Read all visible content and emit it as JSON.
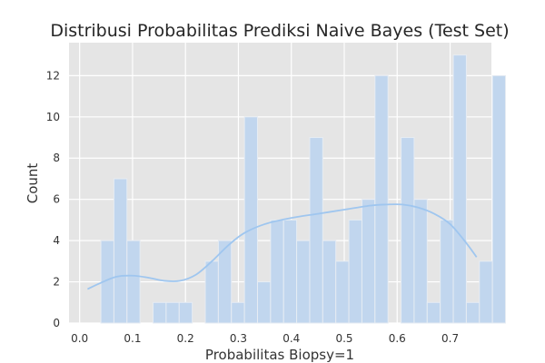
{
  "chart_data": {
    "type": "bar",
    "title": "Distribusi Probabilitas Prediksi Naive Bayes (Test Set)",
    "xlabel": "Probabilitas Biopsy=1",
    "ylabel": "Count",
    "xlim": [
      -0.02,
      0.778
    ],
    "ylim": [
      0,
      13.6
    ],
    "xticks": [
      "0.0",
      "0.1",
      "0.2",
      "0.3",
      "0.4",
      "0.5",
      "0.6",
      "0.7"
    ],
    "yticks": [
      "0",
      "2",
      "4",
      "6",
      "8",
      "10",
      "12"
    ],
    "xtick_values": [
      0.0,
      0.1,
      0.2,
      0.3,
      0.4,
      0.5,
      0.6,
      0.7
    ],
    "ytick_values": [
      0,
      2,
      4,
      6,
      8,
      10,
      12
    ],
    "grid": true,
    "bins": {
      "start": 0.0155,
      "width": 0.02466,
      "counts": [
        0,
        4,
        7,
        4,
        0,
        1,
        1,
        1,
        0,
        3,
        4,
        1,
        10,
        2,
        5,
        5,
        4,
        9,
        4,
        3,
        5,
        6,
        12,
        0,
        9,
        6,
        1,
        5,
        13,
        1,
        3,
        12
      ]
    },
    "kde": {
      "x": [
        0.015,
        0.04,
        0.07,
        0.1,
        0.13,
        0.16,
        0.19,
        0.22,
        0.25,
        0.28,
        0.31,
        0.35,
        0.4,
        0.45,
        0.5,
        0.55,
        0.58,
        0.61,
        0.64,
        0.67,
        0.7,
        0.73,
        0.75
      ],
      "y": [
        1.65,
        1.95,
        2.25,
        2.3,
        2.2,
        2.05,
        2.05,
        2.35,
        3.0,
        3.75,
        4.35,
        4.8,
        5.1,
        5.3,
        5.5,
        5.7,
        5.75,
        5.75,
        5.6,
        5.3,
        4.8,
        3.9,
        3.2
      ]
    },
    "colors": {
      "bar_fill": "#c1d6ee",
      "bar_edge": "#e6ecf3",
      "kde_line": "#9fc6ef",
      "plot_bg": "#e5e5e5",
      "grid": "#ffffff",
      "text": "#262626"
    }
  }
}
